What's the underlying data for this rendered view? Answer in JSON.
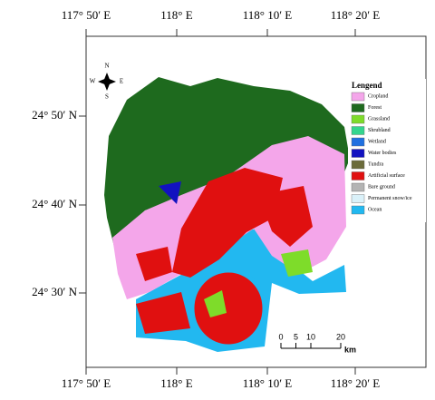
{
  "graticule": {
    "top": [
      "117° 50′ E",
      "118° E",
      "118° 10′ E",
      "118° 20′ E"
    ],
    "bottom": [
      "117° 50′ E",
      "118° E",
      "118° 10′ E",
      "118° 20′ E"
    ],
    "left": [
      "24° 50′ N",
      "24° 40′ N",
      "24° 30′ N"
    ]
  },
  "compass": {
    "north": "N",
    "south": "S",
    "west": "W",
    "east": "E"
  },
  "legend": {
    "title": "Lengend",
    "items": [
      {
        "label": "Cropland",
        "color": "#f4a6ea"
      },
      {
        "label": "Forest",
        "color": "#1e6a1e"
      },
      {
        "label": "Grassland",
        "color": "#7edc2a"
      },
      {
        "label": "Shrubland",
        "color": "#34d58e"
      },
      {
        "label": "Wetland",
        "color": "#2070e0"
      },
      {
        "label": "Water bodies",
        "color": "#1212c0"
      },
      {
        "label": "Tundra",
        "color": "#6b6b3a"
      },
      {
        "label": "Artificial surface",
        "color": "#e01010"
      },
      {
        "label": "Bare ground",
        "color": "#b4b4b4"
      },
      {
        "label": "Permanent snow/ice",
        "color": "#daf1f9"
      },
      {
        "label": "Ocean",
        "color": "#22b8f0"
      }
    ]
  },
  "scale_bar": {
    "ticks": [
      0,
      5,
      10,
      20
    ],
    "unit": "km"
  }
}
